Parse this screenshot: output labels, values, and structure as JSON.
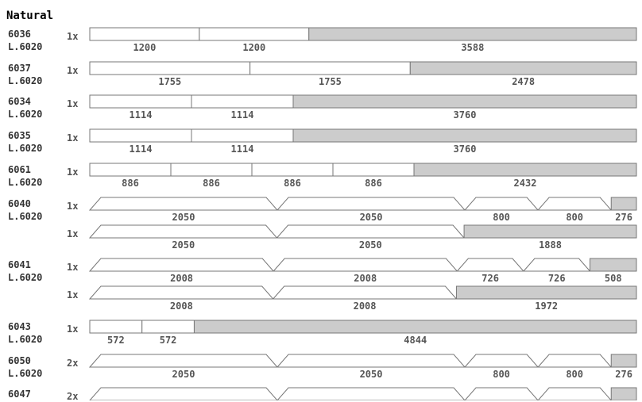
{
  "title": "Natural",
  "colors": {
    "used": "#ffffff",
    "waste": "#cccccc",
    "stroke": "#777777"
  },
  "rows": [
    {
      "id": "6036",
      "sub": "L.6020",
      "patterns": [
        {
          "mult": "1x",
          "trapezoid": false,
          "segments": [
            {
              "len": 1200,
              "label": "1200"
            },
            {
              "len": 1200,
              "label": "1200"
            },
            {
              "len": 3588,
              "label": "3588",
              "waste": true
            }
          ]
        }
      ]
    },
    {
      "id": "6037",
      "sub": "L.6020",
      "patterns": [
        {
          "mult": "1x",
          "trapezoid": false,
          "segments": [
            {
              "len": 1755,
              "label": "1755"
            },
            {
              "len": 1755,
              "label": "1755"
            },
            {
              "len": 2478,
              "label": "2478",
              "waste": true
            }
          ]
        }
      ]
    },
    {
      "id": "6034",
      "sub": "L.6020",
      "patterns": [
        {
          "mult": "1x",
          "trapezoid": false,
          "segments": [
            {
              "len": 1114,
              "label": "1114"
            },
            {
              "len": 1114,
              "label": "1114"
            },
            {
              "len": 3760,
              "label": "3760",
              "waste": true
            }
          ]
        }
      ]
    },
    {
      "id": "6035",
      "sub": "L.6020",
      "patterns": [
        {
          "mult": "1x",
          "trapezoid": false,
          "segments": [
            {
              "len": 1114,
              "label": "1114"
            },
            {
              "len": 1114,
              "label": "1114"
            },
            {
              "len": 3760,
              "label": "3760",
              "waste": true
            }
          ]
        }
      ]
    },
    {
      "id": "6061",
      "sub": "L.6020",
      "patterns": [
        {
          "mult": "1x",
          "trapezoid": false,
          "segments": [
            {
              "len": 886,
              "label": "886"
            },
            {
              "len": 886,
              "label": "886"
            },
            {
              "len": 886,
              "label": "886"
            },
            {
              "len": 886,
              "label": "886"
            },
            {
              "len": 2432,
              "label": "2432",
              "waste": true
            }
          ]
        }
      ]
    },
    {
      "id": "6040",
      "sub": "L.6020",
      "patterns": [
        {
          "mult": "1x",
          "trapezoid": true,
          "segments": [
            {
              "len": 2050,
              "label": "2050"
            },
            {
              "len": 2050,
              "label": "2050"
            },
            {
              "len": 800,
              "label": "800"
            },
            {
              "len": 800,
              "label": "800"
            },
            {
              "len": 276,
              "label": "276",
              "waste": true
            }
          ]
        },
        {
          "mult": "1x",
          "trapezoid": true,
          "segments": [
            {
              "len": 2050,
              "label": "2050"
            },
            {
              "len": 2050,
              "label": "2050"
            },
            {
              "len": 1888,
              "label": "1888",
              "waste": true
            }
          ]
        }
      ]
    },
    {
      "id": "6041",
      "sub": "L.6020",
      "patterns": [
        {
          "mult": "1x",
          "trapezoid": true,
          "segments": [
            {
              "len": 2008,
              "label": "2008"
            },
            {
              "len": 2008,
              "label": "2008"
            },
            {
              "len": 726,
              "label": "726"
            },
            {
              "len": 726,
              "label": "726"
            },
            {
              "len": 508,
              "label": "508",
              "waste": true
            }
          ]
        },
        {
          "mult": "1x",
          "trapezoid": true,
          "segments": [
            {
              "len": 2008,
              "label": "2008"
            },
            {
              "len": 2008,
              "label": "2008"
            },
            {
              "len": 1972,
              "label": "1972",
              "waste": true
            }
          ]
        }
      ]
    },
    {
      "id": "6043",
      "sub": "L.6020",
      "patterns": [
        {
          "mult": "1x",
          "trapezoid": false,
          "segments": [
            {
              "len": 572,
              "label": "572"
            },
            {
              "len": 572,
              "label": "572"
            },
            {
              "len": 4844,
              "label": "4844",
              "waste": true
            }
          ]
        }
      ]
    },
    {
      "id": "6050",
      "sub": "L.6020",
      "patterns": [
        {
          "mult": "2x",
          "trapezoid": true,
          "segments": [
            {
              "len": 2050,
              "label": "2050"
            },
            {
              "len": 2050,
              "label": "2050"
            },
            {
              "len": 800,
              "label": "800"
            },
            {
              "len": 800,
              "label": "800"
            },
            {
              "len": 276,
              "label": "276",
              "waste": true
            }
          ]
        }
      ]
    },
    {
      "id": "6047",
      "sub": "",
      "patterns": [
        {
          "mult": "2x",
          "trapezoid": true,
          "segments": [
            {
              "len": 2050,
              "label": ""
            },
            {
              "len": 2050,
              "label": ""
            },
            {
              "len": 800,
              "label": ""
            },
            {
              "len": 800,
              "label": ""
            },
            {
              "len": 276,
              "label": "",
              "waste": true
            }
          ]
        }
      ]
    }
  ]
}
